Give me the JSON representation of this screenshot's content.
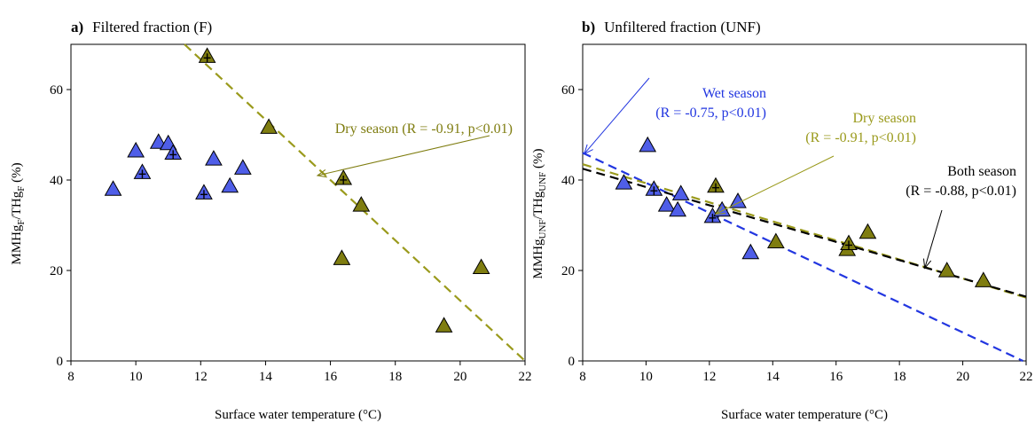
{
  "colors": {
    "wet": "#4f5ee8",
    "dry": "#7f7d10",
    "dry_line": "#9a9a1c",
    "wet_line": "#2236e0",
    "both_line": "#000000"
  },
  "chart_data": [
    {
      "type": "scatter",
      "panel_letter": "a)",
      "title": "Filtered fraction (F)",
      "xlabel": "Surface water temperature (°C)",
      "ylabel": "MMHgF/THgF (%)",
      "ylabel_parts": {
        "a": "MMHg",
        "a_sub": "F",
        "b": "/THg",
        "b_sub": "F",
        "c": " (%)"
      },
      "xlim": [
        8,
        22
      ],
      "ylim": [
        0,
        70
      ],
      "xticks": [
        8,
        10,
        12,
        14,
        16,
        18,
        20,
        22
      ],
      "yticks": [
        0,
        20,
        40,
        60
      ],
      "grid": false,
      "series": [
        {
          "points": [
            [
              9.3,
              37.8,
              false
            ],
            [
              10.0,
              46.3,
              false
            ],
            [
              10.2,
              41.5,
              true
            ],
            [
              10.7,
              48.2,
              false
            ],
            [
              11.0,
              47.9,
              false
            ],
            [
              11.15,
              45.8,
              true
            ],
            [
              12.1,
              37.0,
              true
            ],
            [
              12.4,
              44.5,
              false
            ],
            [
              12.9,
              38.5,
              false
            ],
            [
              13.3,
              42.5,
              false
            ]
          ]
        },
        {
          "points": [
            [
              12.2,
              67.2,
              true
            ],
            [
              14.1,
              51.5,
              false
            ],
            [
              16.4,
              40.2,
              true
            ],
            [
              16.95,
              34.3,
              false
            ],
            [
              16.35,
              22.5,
              false
            ],
            [
              19.5,
              7.6,
              false
            ],
            [
              20.65,
              20.5,
              false
            ]
          ]
        }
      ],
      "fits": [
        {
          "x0": 11.5,
          "y0": 70.0,
          "x1": 22.0,
          "y1": 0.0
        }
      ],
      "annotations": [
        {
          "lines": [
            "Dry season (R = -0.91, p<0.01)"
          ],
          "anchor": [
            15.6,
            41.0
          ]
        }
      ]
    },
    {
      "type": "scatter",
      "panel_letter": "b)",
      "title": "Unfiltered fraction (UNF)",
      "xlabel": "Surface water temperature (°C)",
      "ylabel": "MMHgUNF/THgUNF (%)",
      "ylabel_parts": {
        "a": "MMHg",
        "a_sub": "UNF",
        "b": "/THg",
        "b_sub": "UNF",
        "c": " (%)"
      },
      "xlim": [
        8,
        22
      ],
      "ylim": [
        0,
        70
      ],
      "xticks": [
        8,
        10,
        12,
        14,
        16,
        18,
        20,
        22
      ],
      "yticks": [
        0,
        20,
        40,
        60
      ],
      "grid": false,
      "series": [
        {
          "points": [
            [
              9.3,
              39.2,
              false
            ],
            [
              10.05,
              47.5,
              false
            ],
            [
              10.25,
              37.8,
              true
            ],
            [
              10.65,
              34.3,
              false
            ],
            [
              11.0,
              33.2,
              false
            ],
            [
              11.1,
              36.8,
              false
            ],
            [
              12.1,
              31.8,
              true
            ],
            [
              12.4,
              33.2,
              false
            ],
            [
              12.9,
              35.1,
              false
            ],
            [
              13.3,
              23.8,
              false
            ]
          ]
        },
        {
          "points": [
            [
              12.2,
              38.5,
              true
            ],
            [
              14.1,
              26.2,
              false
            ],
            [
              16.35,
              24.5,
              false
            ],
            [
              16.4,
              25.8,
              true
            ],
            [
              17.0,
              28.3,
              false
            ],
            [
              19.5,
              19.8,
              false
            ],
            [
              20.65,
              17.6,
              false
            ]
          ]
        }
      ],
      "fits": [
        {
          "x0": 8.0,
          "y0": 46.0,
          "x1": 21.9,
          "y1": 0.0
        },
        {
          "x0": 8.0,
          "y0": 43.5,
          "x1": 22.0,
          "y1": 14.0
        },
        {
          "x0": 8.0,
          "y0": 42.5,
          "x1": 22.0,
          "y1": 14.2
        }
      ],
      "annotations": [
        {
          "lines": [
            "Wet season",
            "(R = -0.75, p<0.01)"
          ],
          "anchor": [
            8.05,
            45.8
          ]
        },
        {
          "lines": [
            "Dry season",
            "(R = -0.91, p<0.01)"
          ],
          "anchor": [
            12.2,
            32.5
          ]
        },
        {
          "lines": [
            "Both season",
            "(R = -0.88, p<0.01)"
          ],
          "anchor": [
            18.8,
            20.5
          ]
        }
      ]
    }
  ]
}
